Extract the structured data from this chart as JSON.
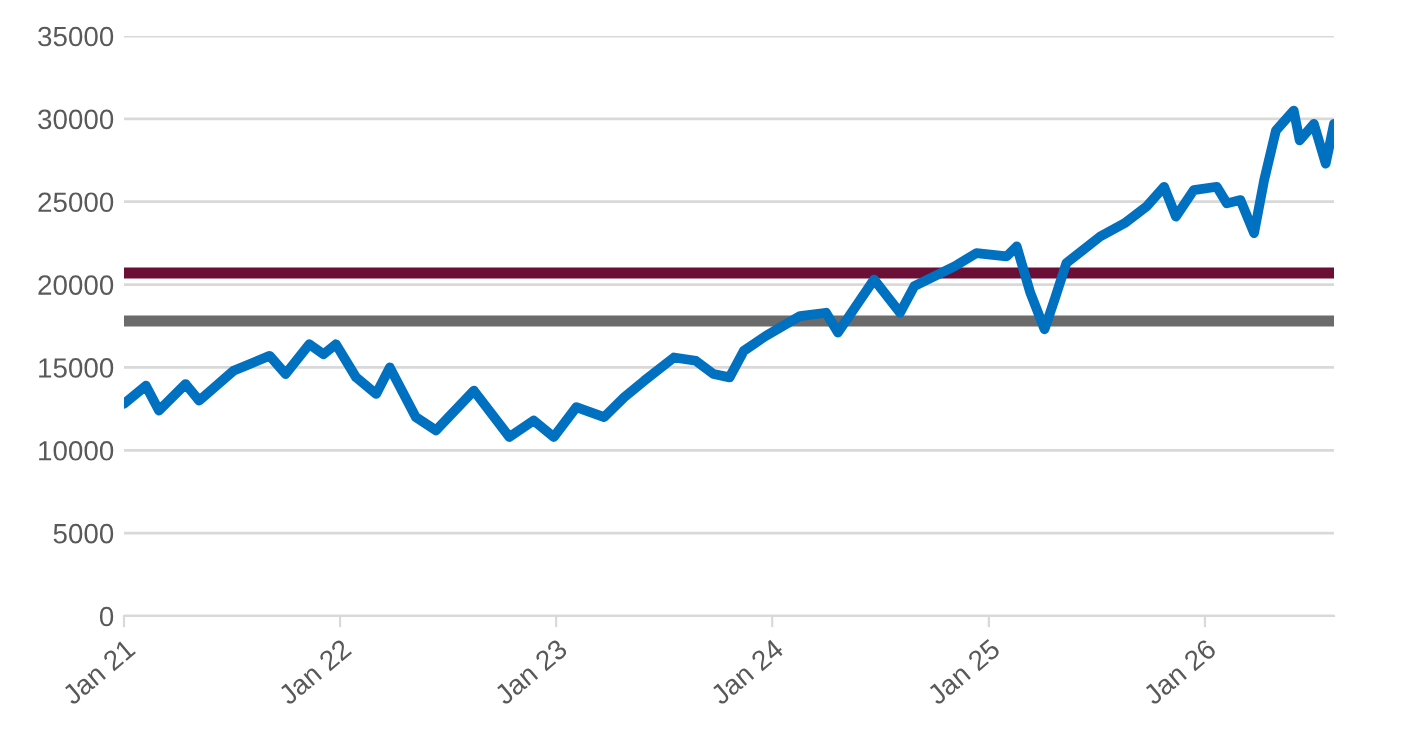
{
  "chart_data": {
    "type": "line",
    "x": [
      "2021-01-01",
      "2021-02-07",
      "2021-03-01",
      "2021-04-15",
      "2021-05-08",
      "2021-07-05",
      "2021-09-04",
      "2021-10-01",
      "2021-11-10",
      "2021-12-04",
      "2021-12-25",
      "2022-01-28",
      "2022-03-03",
      "2022-03-26",
      "2022-05-09",
      "2022-06-12",
      "2022-08-15",
      "2022-10-14",
      "2022-11-24",
      "2022-12-28",
      "2023-02-04",
      "2023-03-23",
      "2023-04-26",
      "2023-05-30",
      "2023-07-19",
      "2023-08-25",
      "2023-09-24",
      "2023-10-21",
      "2023-11-14",
      "2023-12-21",
      "2024-02-17",
      "2024-04-01",
      "2024-04-21",
      "2024-06-21",
      "2024-08-04",
      "2024-08-28",
      "2024-11-04",
      "2024-12-11",
      "2025-01-31",
      "2025-02-17",
      "2025-03-12",
      "2025-04-05",
      "2025-04-22",
      "2025-05-12",
      "2025-07-08",
      "2025-08-18",
      "2025-09-24",
      "2025-10-24",
      "2025-11-13",
      "2025-12-13",
      "2026-01-21",
      "2026-02-07",
      "2026-03-02",
      "2026-03-25",
      "2026-04-11",
      "2026-05-01",
      "2026-05-31",
      "2026-06-10",
      "2026-07-04",
      "2026-07-24",
      "2026-08-07"
    ],
    "series": [
      {
        "color": "#0070c0",
        "values": [
          12800,
          13900,
          12400,
          14000,
          13000,
          14800,
          15700,
          14600,
          16400,
          15800,
          16400,
          14400,
          13400,
          15000,
          12000,
          11200,
          13600,
          10800,
          11800,
          10800,
          12600,
          12000,
          13200,
          14200,
          15600,
          15400,
          14600,
          14400,
          16000,
          16900,
          18100,
          18300,
          17100,
          20300,
          18300,
          19900,
          21100,
          21900,
          21700,
          22300,
          19500,
          17300,
          19100,
          21300,
          22900,
          23700,
          24700,
          25900,
          24100,
          25700,
          25900,
          24900,
          25100,
          23100,
          26300,
          29300,
          30500,
          28700,
          29700,
          27300,
          29700
        ]
      }
    ],
    "xlim": [
      "2021-01-01",
      "2026-08-07"
    ],
    "xticks": [
      {
        "value": "2021-01-01",
        "label": "Jan 21"
      },
      {
        "value": "2022-01-01",
        "label": "Jan 22"
      },
      {
        "value": "2023-01-01",
        "label": "Jan 23"
      },
      {
        "value": "2024-01-01",
        "label": "Jan 24"
      },
      {
        "value": "2025-01-01",
        "label": "Jan 25"
      },
      {
        "value": "2026-01-01",
        "label": "Jan 26"
      }
    ],
    "ylim": [
      0,
      35000
    ],
    "yticks": [
      0,
      5000,
      10000,
      15000,
      20000,
      25000,
      30000,
      35000
    ],
    "ref_lines": [
      {
        "axis": "y",
        "value": 20700,
        "label": null,
        "color": "#6b0f36"
      },
      {
        "axis": "y",
        "value": 17800,
        "label": null,
        "color": "#6b6b6b"
      }
    ],
    "grid": "y",
    "marker": "none",
    "line_style": "solid"
  }
}
